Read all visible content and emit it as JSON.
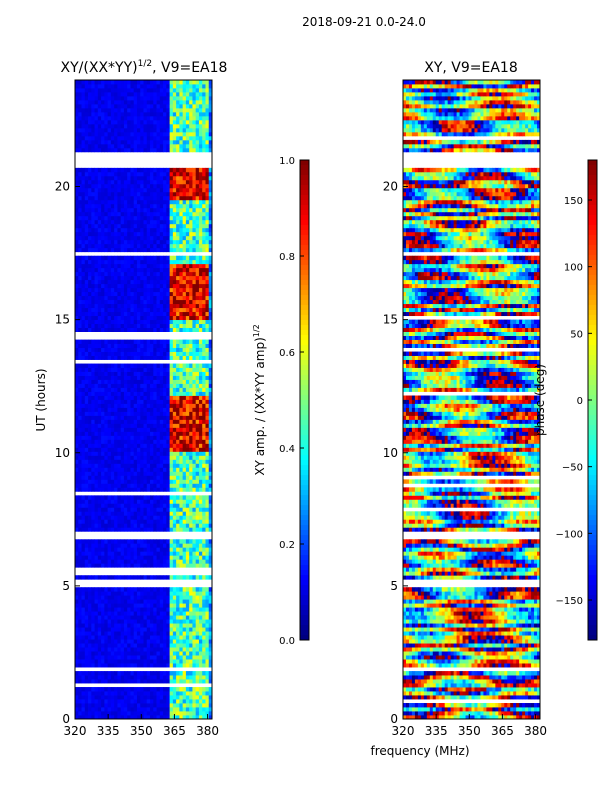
{
  "figure": {
    "suptitle": "2018-09-21 0.0-24.0",
    "shared_xlabel": "frequency (MHz)"
  },
  "chart_data": [
    {
      "type": "heatmap",
      "title": "XY/(XX*YY)",
      "title_sup": "1/2",
      "title_suffix": ", V9=EA18",
      "xlabel": "",
      "ylabel": "UT (hours)",
      "xlim": [
        320,
        382
      ],
      "ylim": [
        0,
        24
      ],
      "xticks": [
        320,
        335,
        350,
        365,
        380
      ],
      "yticks": [
        0,
        5,
        10,
        15,
        20
      ],
      "colorscale": "jet",
      "colorbar": {
        "label": "XY amp. / (XX*YY amp)",
        "label_sup": "1/2",
        "range": [
          0,
          1
        ],
        "ticks": [
          "0.0",
          "0.2",
          "0.4",
          "0.6",
          "0.8",
          "1.0"
        ]
      },
      "description_values": {
        "low_band_mhz": [
          320,
          362
        ],
        "low_band_level": 0.08,
        "high_band_mhz": [
          362,
          380
        ],
        "high_band_level": 0.45,
        "hot_time_ranges_hours": [
          [
            10,
            12
          ],
          [
            15,
            17
          ],
          [
            19.5,
            21
          ]
        ],
        "flagged_time_ranges_hours": [
          [
            20.7,
            21.2
          ],
          [
            6.7,
            6.9
          ],
          [
            4.9,
            5.1
          ],
          [
            1.7,
            1.9
          ]
        ]
      }
    },
    {
      "type": "heatmap",
      "title": "XY, V9=EA18",
      "xlabel": "frequency (MHz)",
      "ylabel": "",
      "xlim": [
        320,
        382
      ],
      "ylim": [
        0,
        24
      ],
      "xticks": [
        320,
        335,
        350,
        365,
        380
      ],
      "yticks": [
        0,
        5,
        10,
        15,
        20
      ],
      "colorscale": "jet",
      "colorbar": {
        "label": "phase (deg)",
        "range": [
          -180,
          180
        ],
        "ticks": [
          "150",
          "100",
          "50",
          "0",
          "−50",
          "−100",
          "−150"
        ],
        "tick_values": [
          150,
          100,
          50,
          0,
          -50,
          -100,
          -150
        ]
      },
      "description_values": {
        "phase_range_deg": [
          -180,
          180
        ],
        "flagged_time_ranges_hours": [
          [
            20.7,
            21.2
          ],
          [
            6.7,
            6.9
          ],
          [
            4.9,
            5.1
          ],
          [
            1.7,
            1.9
          ]
        ]
      }
    }
  ]
}
